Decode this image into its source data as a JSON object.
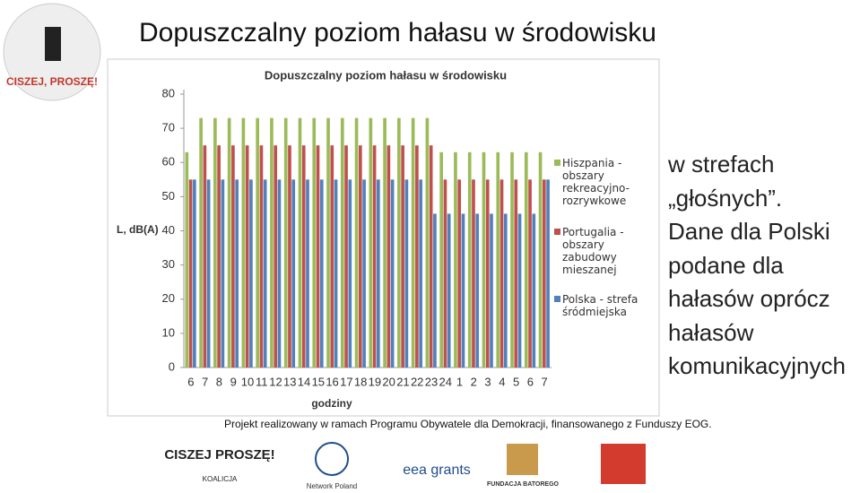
{
  "header": {
    "title": "Dopuszczalny poziom hałasu w środowisku",
    "logo_text": "CISZEJ, PROSZĘ!"
  },
  "chart_data": {
    "type": "bar",
    "title": "Dopuszczalny poziom hałasu w środowisku",
    "ylabel": "L, dB(A)",
    "xlabel": "godziny",
    "categories": [
      "6",
      "7",
      "8",
      "9",
      "10",
      "11",
      "12",
      "13",
      "14",
      "15",
      "16",
      "17",
      "18",
      "19",
      "20",
      "21",
      "22",
      "23",
      "24",
      "1",
      "2",
      "3",
      "4",
      "5",
      "6",
      "7"
    ],
    "series": [
      {
        "name": "Hiszpania - obszary rekreacyjno-rozrywkowe",
        "color": "#9bbb59",
        "values": [
          63,
          73,
          73,
          73,
          73,
          73,
          73,
          73,
          73,
          73,
          73,
          73,
          73,
          73,
          73,
          73,
          73,
          73,
          63,
          63,
          63,
          63,
          63,
          63,
          63,
          63
        ]
      },
      {
        "name": "Portugalia - obszary zabudowy mieszanej",
        "color": "#c0504d",
        "values": [
          55,
          65,
          65,
          65,
          65,
          65,
          65,
          65,
          65,
          65,
          65,
          65,
          65,
          65,
          65,
          65,
          65,
          65,
          55,
          55,
          55,
          55,
          55,
          55,
          55,
          55
        ]
      },
      {
        "name": "Polska - strefa śródmiejska",
        "color": "#4f81bd",
        "values": [
          55,
          55,
          55,
          55,
          55,
          55,
          55,
          55,
          55,
          55,
          55,
          55,
          55,
          55,
          55,
          55,
          55,
          45,
          45,
          45,
          45,
          45,
          45,
          45,
          45,
          55
        ]
      }
    ],
    "ylim": [
      0,
      80
    ],
    "yticks": [
      0,
      10,
      20,
      30,
      40,
      50,
      60,
      70,
      80
    ],
    "grid": false,
    "legend": "right"
  },
  "side_text": [
    "w strefach",
    "„głośnych”.",
    "Dane dla Polski",
    "podane dla",
    "hałasów oprócz",
    "hałasów",
    "komunikacyjnych"
  ],
  "footer": {
    "text": "Projekt realizowany w ramach Programu Obywatele dla Demokracji, finansowanego z Funduszy EOG.",
    "logos": [
      "CISZEJ PROSZĘ!",
      "KOALICJA",
      "Network Poland",
      "eea grants",
      "FUNDACJA BATOREGO"
    ]
  }
}
